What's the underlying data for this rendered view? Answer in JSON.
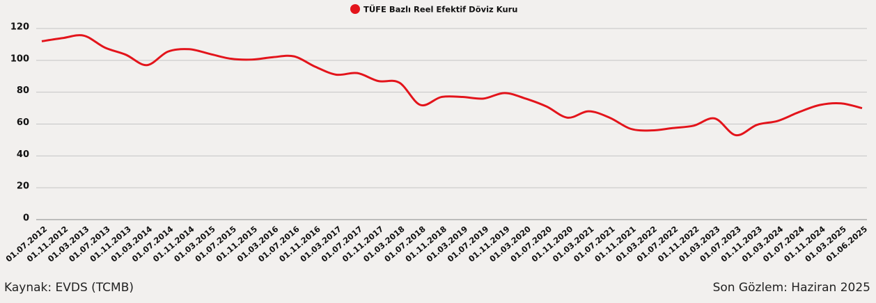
{
  "chart_data": {
    "type": "line",
    "legend": "top",
    "series": [
      {
        "name": "TÜFE Bazlı Reel Efektif Döviz Kuru",
        "color": "#e3141b",
        "values": [
          112,
          114,
          115.5,
          108,
          103.5,
          97,
          105.5,
          107,
          104,
          101,
          100.5,
          102,
          102.5,
          96,
          91,
          92,
          87,
          86,
          72,
          77,
          77,
          76,
          79.5,
          76,
          71,
          64,
          68,
          64,
          57,
          56,
          57.5,
          59,
          63.5,
          53,
          59.5,
          62,
          67.5,
          72,
          73,
          70
        ]
      }
    ],
    "categories": [
      "01.07.2012",
      "01.11.2012",
      "01.03.2013",
      "01.07.2013",
      "01.11.2013",
      "01.03.2014",
      "01.07.2014",
      "01.11.2014",
      "01.03.2015",
      "01.07.2015",
      "01.11.2015",
      "01.03.2016",
      "01.07.2016",
      "01.11.2016",
      "01.03.2017",
      "01.07.2017",
      "01.11.2017",
      "01.03.2018",
      "01.07.2018",
      "01.11.2018",
      "01.03.2019",
      "01.07.2019",
      "01.11.2019",
      "01.03.2020",
      "01.07.2020",
      "01.11.2020",
      "01.03.2021",
      "01.07.2021",
      "01.11.2021",
      "01.03.2022",
      "01.07.2022",
      "01.11.2022",
      "01.03.2023",
      "01.07.2023",
      "01.11.2023",
      "01.03.2024",
      "01.07.2024",
      "01.11.2024",
      "01.03.2025",
      "01.06.2025"
    ],
    "ylim": [
      0,
      120
    ],
    "yticks": [
      0,
      20,
      40,
      60,
      80,
      100,
      120
    ],
    "grid": true
  },
  "footer": {
    "source": "Kaynak:  EVDS (TCMB)",
    "last_observation": "Son Gözlem: Haziran 2025"
  }
}
